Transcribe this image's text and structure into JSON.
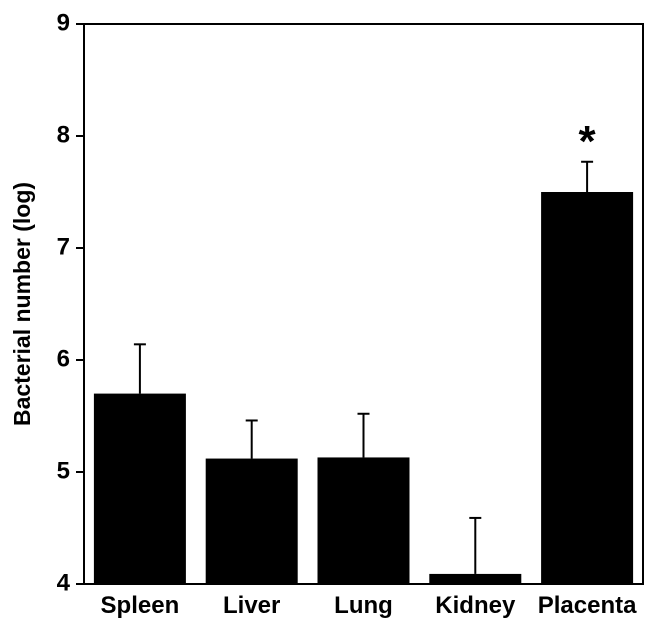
{
  "chart_data": {
    "type": "bar",
    "title": "",
    "xlabel": "",
    "ylabel": "Bacterial number (log)",
    "ylim": [
      4,
      9
    ],
    "yticks": [
      4,
      5,
      6,
      7,
      8,
      9
    ],
    "grid": false,
    "categories": [
      "Spleen",
      "Liver",
      "Lung",
      "Kidney",
      "Placenta"
    ],
    "values": [
      5.7,
      5.12,
      5.13,
      4.09,
      7.5
    ],
    "error_upper": [
      6.14,
      5.46,
      5.52,
      4.59,
      7.77
    ],
    "annotations": [
      {
        "category": "Placenta",
        "text": "*"
      }
    ],
    "colors": {
      "bar": "#000000",
      "axis": "#000000"
    }
  }
}
